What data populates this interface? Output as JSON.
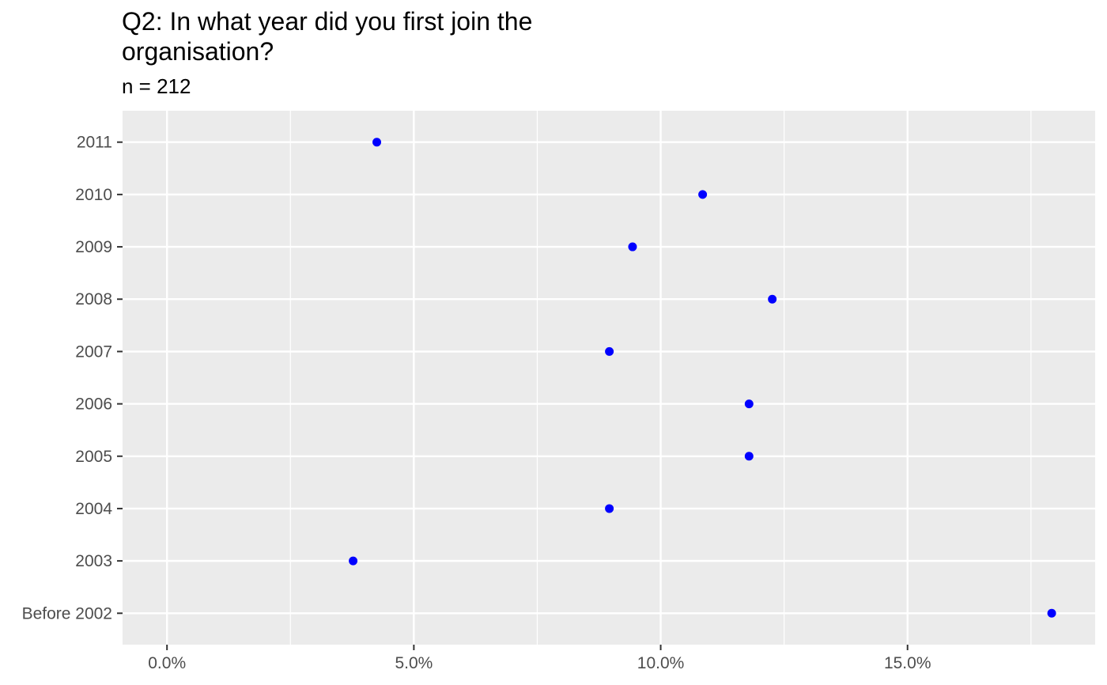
{
  "chart_data": {
    "type": "scatter",
    "title": "Q2: In what year did you first join the organisation?",
    "subtitle": "n = 212",
    "xlabel": "",
    "ylabel": "",
    "categories": [
      "2011",
      "2010",
      "2009",
      "2008",
      "2007",
      "2006",
      "2005",
      "2004",
      "2003",
      "Before 2002"
    ],
    "values": [
      4.25,
      10.85,
      9.43,
      12.26,
      8.96,
      11.79,
      11.79,
      8.96,
      3.77,
      17.92
    ],
    "xlim": [
      -0.9,
      18.8
    ],
    "xticks": [
      0,
      5,
      10,
      15
    ],
    "xtick_labels": [
      "0.0%",
      "5.0%",
      "10.0%",
      "15.0%"
    ],
    "grid": true,
    "point_color": "#0000ff",
    "panel_color": "#ebebeb"
  }
}
